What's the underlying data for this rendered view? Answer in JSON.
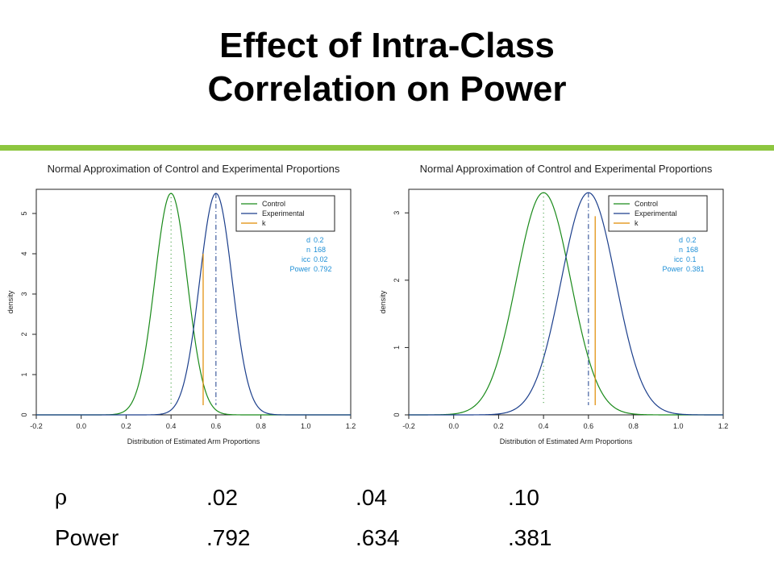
{
  "slide": {
    "title_line1": "Effect of Intra-Class",
    "title_line2": "Correlation on Power",
    "accent_color": "#8dc63f"
  },
  "chart_data": [
    {
      "type": "line",
      "title": "Normal Approximation of Control and Experimental Proportions",
      "xlabel": "Distribution of Estimated Arm Proportions",
      "ylabel": "density",
      "xlim": [
        -0.2,
        1.2
      ],
      "ylim": [
        0,
        5.6
      ],
      "xticks": [
        "-0.2",
        "0.0",
        "0.2",
        "0.4",
        "0.6",
        "0.8",
        "1.0",
        "1.2"
      ],
      "xtick_values": [
        -0.2,
        0.0,
        0.2,
        0.4,
        0.6,
        0.8,
        1.0,
        1.2
      ],
      "yticks": [
        "0",
        "1",
        "2",
        "3",
        "4",
        "5"
      ],
      "ytick_values": [
        0,
        1,
        2,
        3,
        4,
        5
      ],
      "legend_position": "top-right",
      "series": [
        {
          "name": "Control",
          "color": "#1a8a1a",
          "distribution": "normal",
          "mean": 0.4,
          "peak": 5.5,
          "sd": 0.0725
        },
        {
          "name": "Experimental",
          "color": "#1c3f8c",
          "distribution": "normal",
          "mean": 0.6,
          "peak": 5.5,
          "sd": 0.0725
        },
        {
          "name": "k",
          "color": "#e08a00",
          "type": "vline",
          "x": 0.543,
          "ymax": 4.0
        }
      ],
      "reference_lines": [
        {
          "x": 0.4,
          "color": "#1a8a1a",
          "style": "dotted"
        },
        {
          "x": 0.6,
          "color": "#1c3f8c",
          "style": "dashdot"
        }
      ],
      "parameters": [
        {
          "label": "d",
          "value": "0.2"
        },
        {
          "label": "n",
          "value": "168"
        },
        {
          "label": "icc",
          "value": "0.02"
        },
        {
          "label": "Power",
          "value": "0.792"
        }
      ]
    },
    {
      "type": "line",
      "title": "Normal Approximation of Control and Experimental Proportions",
      "xlabel": "Distribution of Estimated Arm Proportions",
      "ylabel": "density",
      "xlim": [
        -0.2,
        1.2
      ],
      "ylim": [
        0,
        3.35
      ],
      "xticks": [
        "-0.2",
        "0.0",
        "0.2",
        "0.4",
        "0.6",
        "0.8",
        "1.0",
        "1.2"
      ],
      "xtick_values": [
        -0.2,
        0.0,
        0.2,
        0.4,
        0.6,
        0.8,
        1.0,
        1.2
      ],
      "yticks": [
        "0",
        "1",
        "2",
        "3"
      ],
      "ytick_values": [
        0,
        1,
        2,
        3
      ],
      "legend_position": "top-right",
      "series": [
        {
          "name": "Control",
          "color": "#1a8a1a",
          "distribution": "normal",
          "mean": 0.4,
          "peak": 3.3,
          "sd": 0.121
        },
        {
          "name": "Experimental",
          "color": "#1c3f8c",
          "distribution": "normal",
          "mean": 0.6,
          "peak": 3.3,
          "sd": 0.121
        },
        {
          "name": "k",
          "color": "#e08a00",
          "type": "vline",
          "x": 0.63,
          "ymax": 2.95
        }
      ],
      "reference_lines": [
        {
          "x": 0.4,
          "color": "#1a8a1a",
          "style": "dotted"
        },
        {
          "x": 0.6,
          "color": "#1c3f8c",
          "style": "dashdot"
        }
      ],
      "parameters": [
        {
          "label": "d",
          "value": "0.2"
        },
        {
          "label": "n",
          "value": "168"
        },
        {
          "label": "icc",
          "value": "0.1"
        },
        {
          "label": "Power",
          "value": "0.381"
        }
      ]
    }
  ],
  "table": {
    "rho_symbol": "ρ",
    "rho_values": [
      ".02",
      ".04",
      ".10"
    ],
    "power_label": "Power",
    "power_values": [
      ".792",
      ".634",
      ".381"
    ]
  }
}
